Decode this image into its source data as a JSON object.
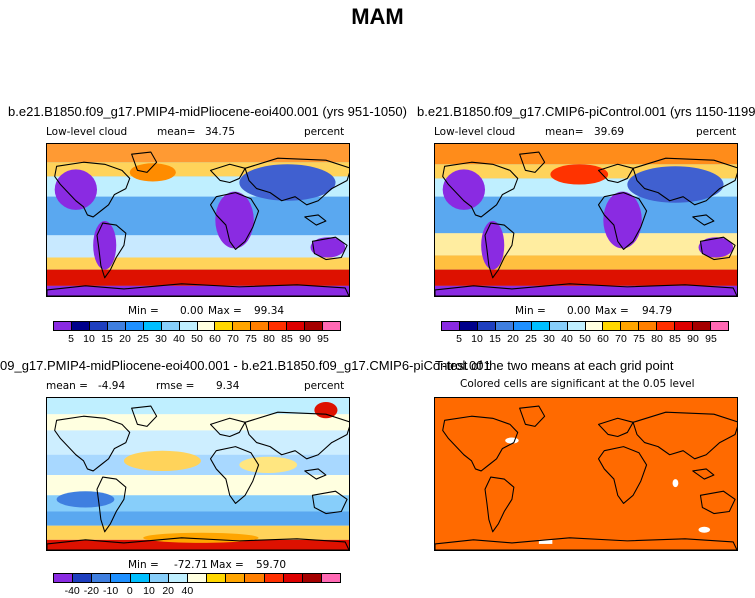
{
  "figure": {
    "title": "MAM"
  },
  "panels": {
    "p1": {
      "title": "b.e21.B1850.f09_g17.PMIP4-midPliocene-eoi400.001 (yrs 951-1050)",
      "variable": "Low-level cloud",
      "mean_label": "mean=",
      "mean": "34.75",
      "units": "percent",
      "min_label": "Min =",
      "min": "0.00",
      "max_label": "Max =",
      "max": "99.34"
    },
    "p2": {
      "title": "b.e21.B1850.f09_g17.CMIP6-piControl.001 (yrs 1150-1199)",
      "variable": "Low-level cloud",
      "mean_label": "mean=",
      "mean": "39.69",
      "units": "percent",
      "min_label": "Min =",
      "min": "0.00",
      "max_label": "Max =",
      "max": "94.79"
    },
    "p3": {
      "title": "09_g17.PMIP4-midPliocene-eoi400.001 - b.e21.B1850.f09_g17.CMIP6-piControl.001",
      "mean_label": "mean =",
      "mean": "-4.94",
      "rmse_label": "rmse =",
      "rmse": "9.34",
      "units": "percent",
      "min_label": "Min =",
      "min": "-72.71",
      "max_label": "Max =",
      "max": "59.70"
    },
    "p4": {
      "title": "T-test of the two means at each grid point",
      "note": "Colored cells are significant at the 0.05 level"
    }
  },
  "colorbars": {
    "abs": {
      "labels": [
        "5",
        "10",
        "15",
        "20",
        "25",
        "30",
        "40",
        "50",
        "60",
        "70",
        "75",
        "80",
        "85",
        "90",
        "95"
      ],
      "colors": [
        "#8a2be2",
        "#00008b",
        "#1e3fbf",
        "#3f7fe0",
        "#1e90ff",
        "#00bfff",
        "#87cefa",
        "#bfefff",
        "#ffffe0",
        "#ffd700",
        "#ffa500",
        "#ff7f00",
        "#ff2f00",
        "#dd0000",
        "#a40000",
        "#ff69b4"
      ]
    },
    "diff": {
      "labels": [
        "-40",
        "-20",
        "-10",
        "0",
        "10",
        "20",
        "40"
      ],
      "colors": [
        "#8a2be2",
        "#1e3fbf",
        "#3f7fe0",
        "#1e90ff",
        "#00bfff",
        "#87cefa",
        "#bfefff",
        "#ffffe0",
        "#ffd700",
        "#ffa500",
        "#ff7f00",
        "#ff2f00",
        "#dd0000",
        "#a40000",
        "#ff69b4"
      ]
    }
  },
  "colors": {
    "significance": "#ff6a00"
  }
}
